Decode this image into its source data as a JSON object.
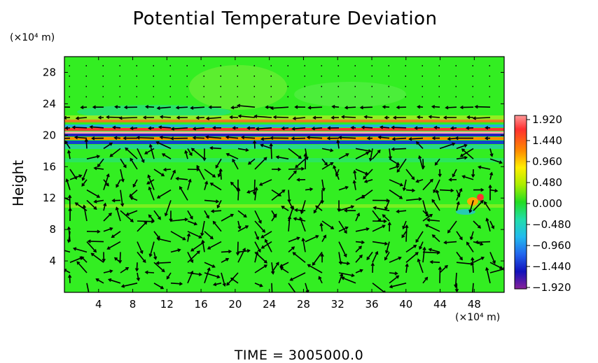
{
  "chart_data": {
    "type": "heatmap",
    "title": "Potential Temperature Deviation",
    "ylabel": "Height",
    "x_unit": "(×10⁴ m)",
    "y_unit": "(×10⁴ m)",
    "x_ticks": [
      4,
      8,
      12,
      16,
      20,
      24,
      28,
      32,
      36,
      40,
      44,
      48
    ],
    "y_ticks": [
      4,
      8,
      12,
      16,
      20,
      24,
      28
    ],
    "xlim": [
      0,
      51.5
    ],
    "ylim": [
      0,
      30
    ],
    "colorbar": {
      "labels": [
        "1.920",
        "1.440",
        "0.960",
        "0.480",
        "0.000",
        "−0.480",
        "−0.960",
        "−1.440",
        "−1.920"
      ],
      "range": [
        -1.92,
        1.92
      ]
    },
    "annotations": [
      {
        "height": 20,
        "description": "strong positive/negative alternating layer"
      },
      {
        "height": 21.5,
        "description": "positive deviation layer"
      }
    ],
    "vector_field": "wind arrows overlaid on the field"
  },
  "footer": {
    "text": "TIME  =  3005000.0"
  },
  "colors": {
    "background_field": "#33ee22",
    "positive": "#ff2222",
    "negative": "#1a22cc"
  }
}
